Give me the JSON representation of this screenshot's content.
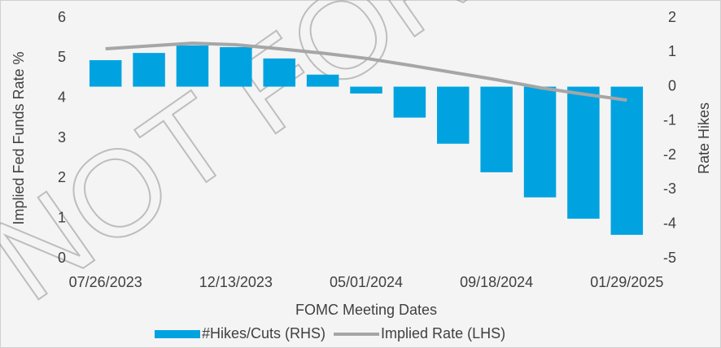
{
  "chart_data": {
    "type": "bar_line",
    "watermark": "NOT FOR",
    "x_label": "FOMC Meeting Dates",
    "y_label": "Implied Fed Funds Rate %",
    "y2_label": "Rate Hikes",
    "categories": [
      "07/26/2023",
      null,
      null,
      "12/13/2023",
      null,
      null,
      "05/01/2024",
      null,
      null,
      "09/18/2024",
      null,
      null,
      "01/29/2025"
    ],
    "series": [
      {
        "name": "#Hikes/Cuts (RHS)",
        "type": "bar",
        "axis": "y2",
        "color": "#00a3e0",
        "values": [
          0.77,
          0.98,
          1.2,
          1.15,
          0.82,
          0.35,
          -0.2,
          -0.9,
          -1.66,
          -2.49,
          -3.22,
          -3.84,
          -4.31
        ]
      },
      {
        "name": "Implied Rate (LHS)",
        "type": "line",
        "color": "#a6a6a6",
        "values": [
          5.23,
          5.3,
          5.37,
          5.33,
          5.23,
          5.12,
          4.99,
          4.82,
          4.64,
          4.46,
          4.26,
          4.1,
          3.95
        ]
      }
    ],
    "ylim": [
      0,
      6
    ],
    "yticks": [
      0,
      1,
      2,
      3,
      4,
      5,
      6
    ],
    "y2lim": [
      -5,
      2
    ],
    "y2ticks": [
      -5,
      -4,
      -3,
      -2,
      -1,
      0,
      1,
      2
    ],
    "legend": "bottom"
  }
}
